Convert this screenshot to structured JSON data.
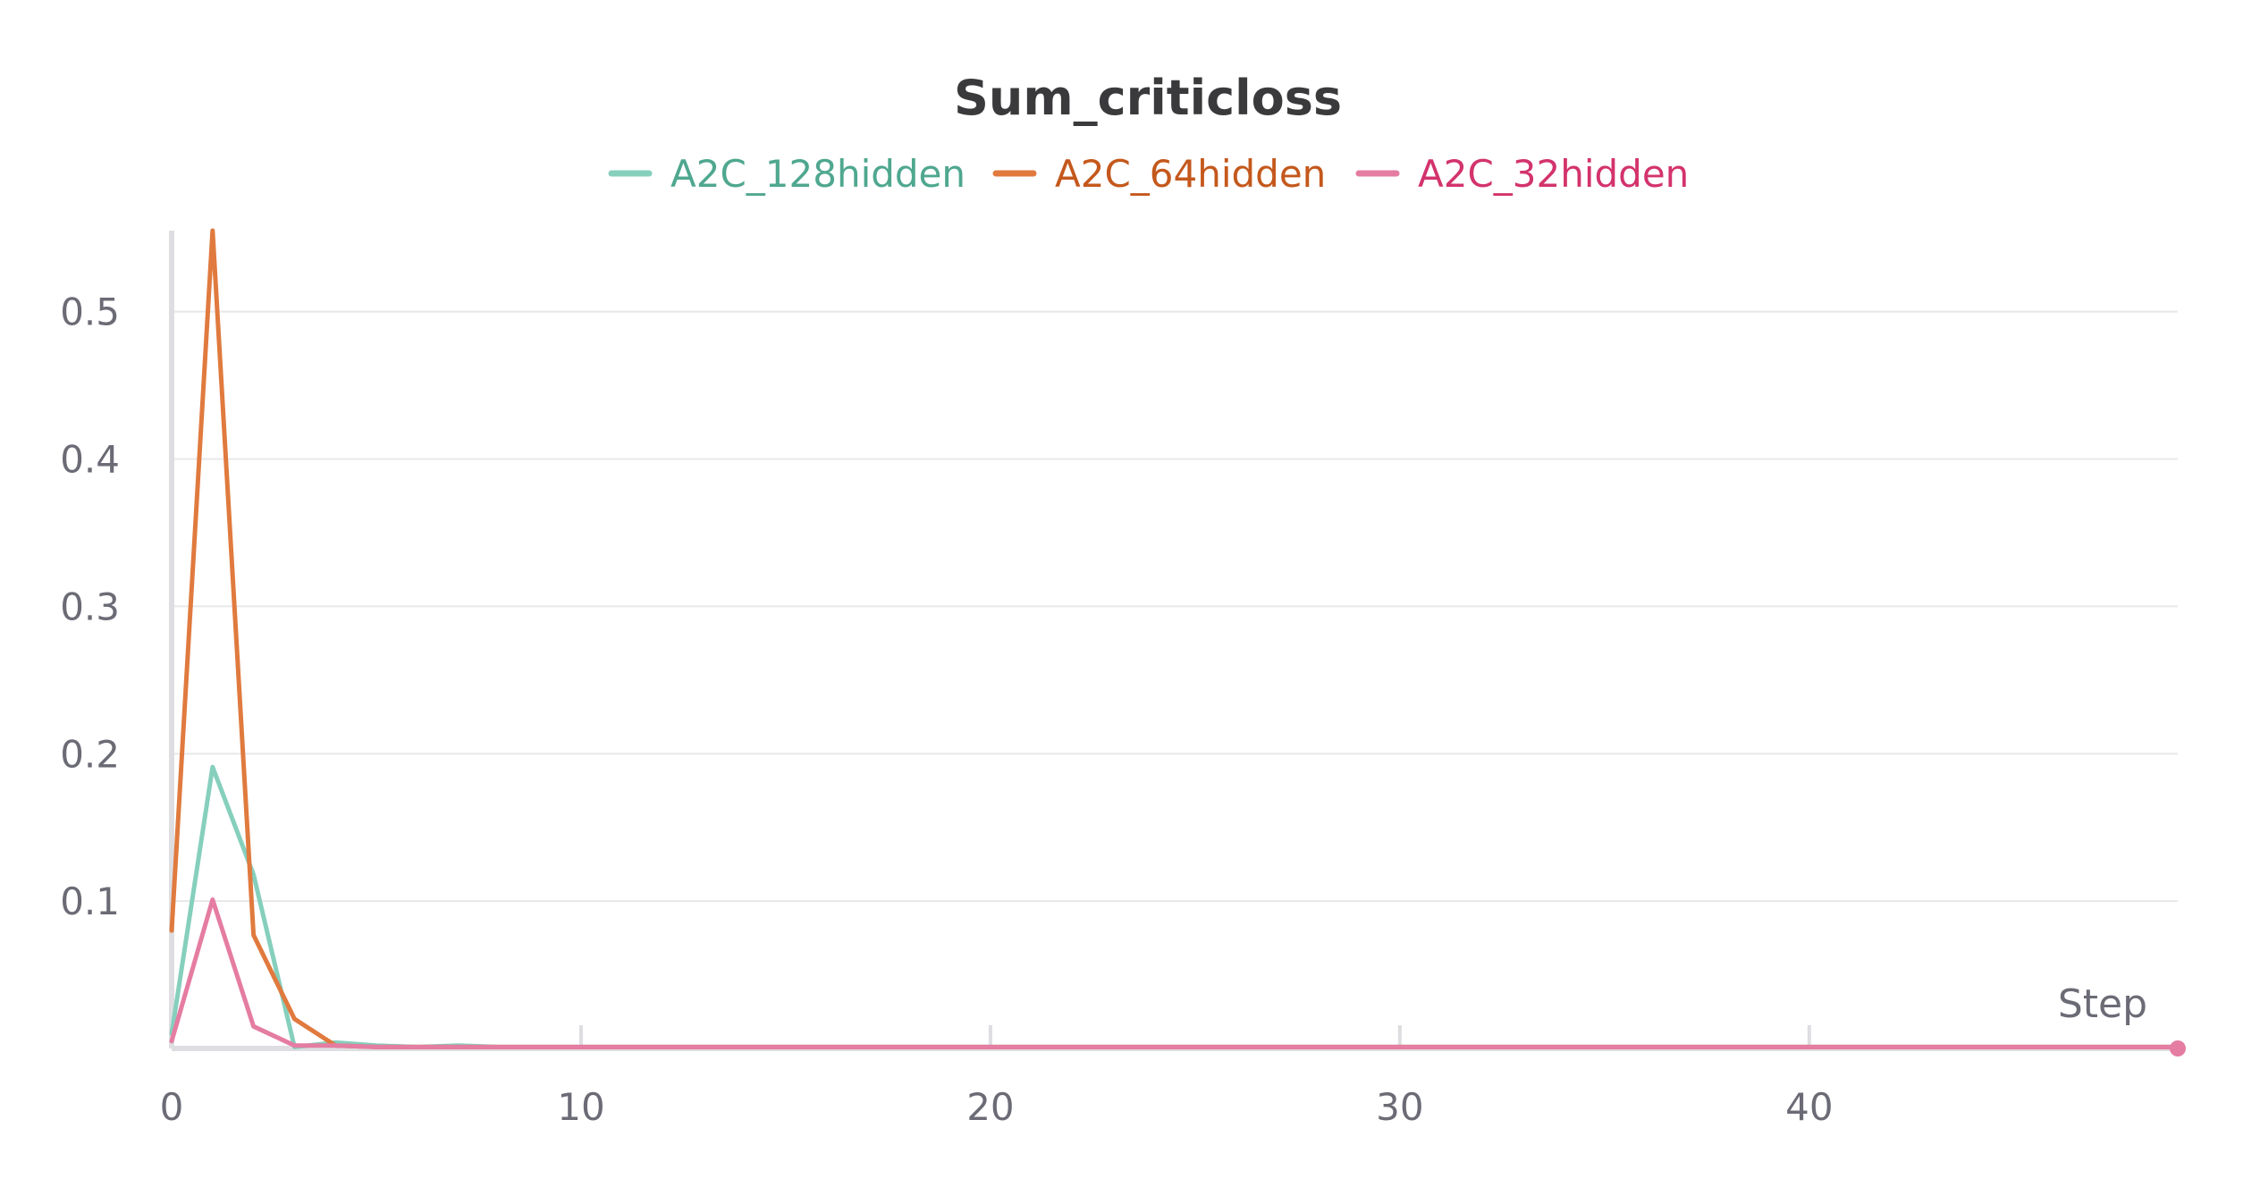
{
  "chart_data": {
    "type": "line",
    "title": "Sum_criticloss",
    "xlabel": "Step",
    "ylabel": "",
    "xlim": [
      0,
      49
    ],
    "ylim": [
      0,
      0.555
    ],
    "x_ticks": [
      0,
      10,
      20,
      30,
      40
    ],
    "x_tick_labels": [
      "0",
      "10",
      "20",
      "30",
      "40"
    ],
    "y_ticks": [
      0.1,
      0.2,
      0.3,
      0.4,
      0.5
    ],
    "y_tick_labels": [
      "0.1",
      "0.2",
      "0.3",
      "0.4",
      "0.5"
    ],
    "grid": "horizontal",
    "legend_position": "top-center",
    "series": [
      {
        "name": "A2C_128hidden",
        "color": "#86cfbd",
        "legend_text_color": "#4fa78f",
        "x": [
          0,
          1,
          2,
          3,
          4,
          5,
          6,
          7,
          8,
          10,
          15,
          20,
          25,
          30,
          35,
          40,
          45,
          49
        ],
        "values": [
          0.01,
          0.191,
          0.118,
          0.001,
          0.004,
          0.002,
          0.001,
          0.002,
          0.001,
          0.001,
          0.001,
          0.001,
          0.001,
          0.001,
          0.001,
          0.001,
          0.001,
          0.001
        ]
      },
      {
        "name": "A2C_64hidden",
        "color": "#e07a3e",
        "legend_text_color": "#c4581c",
        "x": [
          0,
          1,
          2,
          3,
          4,
          5,
          6,
          7,
          8,
          10,
          15,
          20,
          25,
          30,
          35,
          40,
          45,
          49
        ],
        "values": [
          0.08,
          0.555,
          0.077,
          0.02,
          0.002,
          0.001,
          0.001,
          0.001,
          0.001,
          0.001,
          0.001,
          0.001,
          0.001,
          0.001,
          0.001,
          0.001,
          0.001,
          0.001
        ]
      },
      {
        "name": "A2C_32hidden",
        "color": "#e57ca1",
        "legend_text_color": "#d3336c",
        "x": [
          0,
          1,
          2,
          3,
          4,
          5,
          6,
          7,
          8,
          10,
          15,
          20,
          25,
          30,
          35,
          40,
          45,
          49
        ],
        "values": [
          0.005,
          0.101,
          0.015,
          0.002,
          0.002,
          0.001,
          0.001,
          0.001,
          0.001,
          0.001,
          0.001,
          0.001,
          0.001,
          0.001,
          0.001,
          0.001,
          0.001,
          0.001
        ]
      }
    ],
    "end_marker": {
      "x": 49,
      "y": 0,
      "color": "#e57ca1"
    }
  }
}
